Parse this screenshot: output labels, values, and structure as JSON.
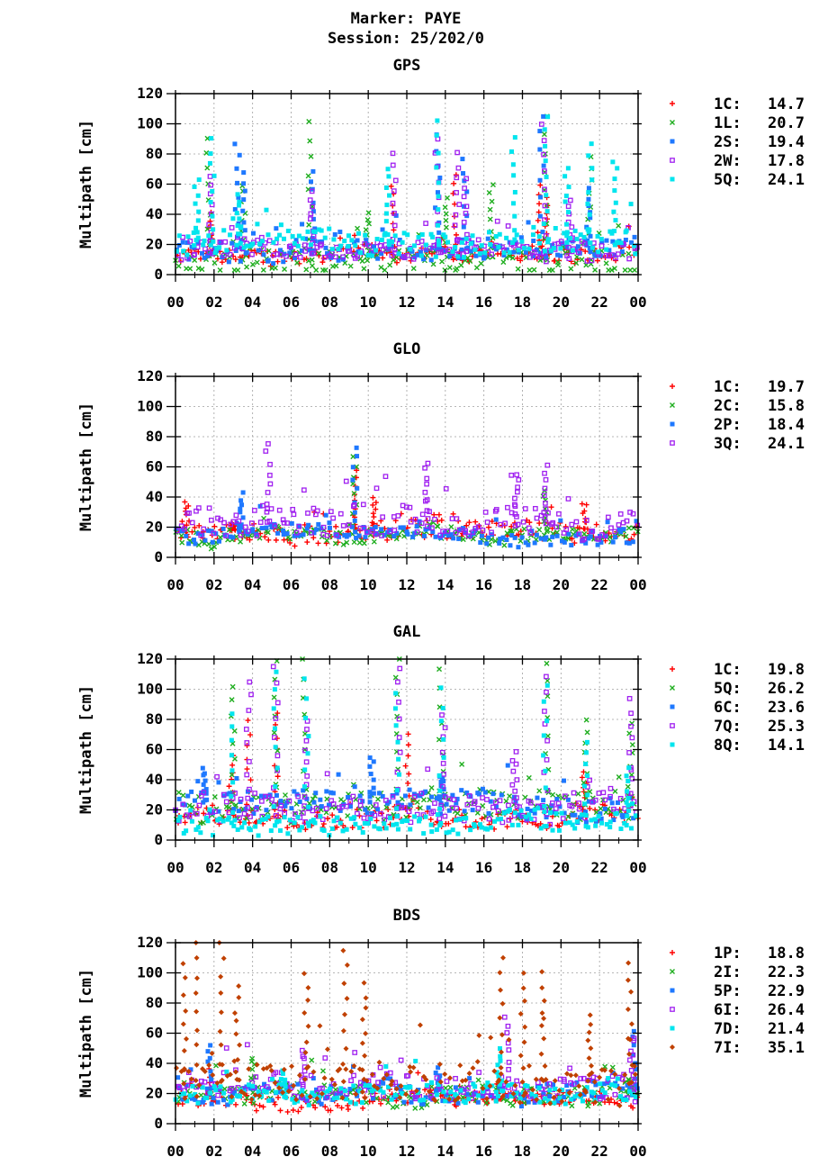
{
  "header": {
    "line1": "Marker: PAYE",
    "line2": "Session: 25/202/0"
  },
  "colors": {
    "red": "#ff0000",
    "green": "#1fae1f",
    "blue": "#1e78ff",
    "purple": "#a020f0",
    "cyan": "#00e5ee",
    "orange": "#c04000",
    "grid": "#a0a0a0"
  },
  "chart_data": [
    {
      "type": "scatter",
      "title": "GPS",
      "ylabel": "Multipath [cm]",
      "xlabel": "",
      "ylim": [
        0,
        120
      ],
      "xlim": [
        0,
        24
      ],
      "xticks": [
        "00",
        "02",
        "04",
        "06",
        "08",
        "10",
        "12",
        "14",
        "16",
        "18",
        "20",
        "22",
        "00"
      ],
      "yticks": [
        "0",
        "20",
        "40",
        "60",
        "80",
        "100",
        "120"
      ],
      "grid": true,
      "legend_position": "right",
      "series": [
        {
          "name": "1C:",
          "rms": "14.7",
          "marker": "plus",
          "color": "#ff0000",
          "base": 12,
          "spread": 6,
          "peaks": [
            [
              1.8,
              40
            ],
            [
              11.3,
              58
            ],
            [
              14.5,
              66
            ],
            [
              18.9,
              58
            ],
            [
              19.2,
              50
            ]
          ]
        },
        {
          "name": "1L:",
          "rms": "20.7",
          "marker": "cross",
          "color": "#1fae1f",
          "base": 11,
          "spread": 10,
          "peaks": [
            [
              1.7,
              90
            ],
            [
              3.5,
              60
            ],
            [
              7.0,
              100
            ],
            [
              10.0,
              40
            ],
            [
              14.0,
              50
            ],
            [
              16.4,
              60
            ],
            [
              19.2,
              104
            ],
            [
              21.5,
              78
            ]
          ]
        },
        {
          "name": "2S:",
          "rms": "19.4",
          "marker": "square",
          "color": "#1e78ff",
          "base": 17,
          "spread": 8,
          "peaks": [
            [
              3.2,
              88
            ],
            [
              3.5,
              68
            ],
            [
              7.1,
              68
            ],
            [
              13.6,
              92
            ],
            [
              15.0,
              76
            ],
            [
              19.0,
              106
            ],
            [
              21.4,
              56
            ]
          ]
        },
        {
          "name": "2W:",
          "rms": "17.8",
          "marker": "opensquare",
          "color": "#a020f0",
          "base": 15,
          "spread": 8,
          "peaks": [
            [
              1.8,
              66
            ],
            [
              7.1,
              56
            ],
            [
              11.4,
              80
            ],
            [
              13.6,
              90
            ],
            [
              14.6,
              80
            ],
            [
              15.0,
              64
            ],
            [
              19.1,
              100
            ],
            [
              20.5,
              48
            ]
          ]
        },
        {
          "name": "5Q:",
          "rms": "24.1",
          "marker": "square",
          "color": "#00e5ee",
          "base": 22,
          "spread": 10,
          "peaks": [
            [
              1.1,
              62
            ],
            [
              1.9,
              90
            ],
            [
              3.3,
              52
            ],
            [
              11.0,
              70
            ],
            [
              13.6,
              102
            ],
            [
              17.5,
              90
            ],
            [
              19.2,
              106
            ],
            [
              20.3,
              72
            ],
            [
              21.5,
              88
            ],
            [
              22.8,
              76
            ]
          ]
        }
      ]
    },
    {
      "type": "scatter",
      "title": "GLO",
      "ylabel": "Multipath [cm]",
      "xlabel": "",
      "ylim": [
        0,
        120
      ],
      "xlim": [
        0,
        24
      ],
      "xticks": [
        "00",
        "02",
        "04",
        "06",
        "08",
        "10",
        "12",
        "14",
        "16",
        "18",
        "20",
        "22",
        "00"
      ],
      "yticks": [
        "0",
        "20",
        "40",
        "60",
        "80",
        "100",
        "120"
      ],
      "grid": true,
      "legend_position": "right",
      "series": [
        {
          "name": "1C:",
          "rms": "19.7",
          "marker": "plus",
          "color": "#ff0000",
          "base": 18,
          "spread": 8,
          "peaks": [
            [
              0.6,
              36
            ],
            [
              3.0,
              22
            ],
            [
              9.3,
              58
            ],
            [
              10.3,
              40
            ],
            [
              21.2,
              36
            ]
          ]
        },
        {
          "name": "2C:",
          "rms": "15.8",
          "marker": "cross",
          "color": "#1fae1f",
          "base": 14,
          "spread": 6,
          "peaks": [
            [
              9.3,
              68
            ],
            [
              19.2,
              44
            ]
          ]
        },
        {
          "name": "2P:",
          "rms": "18.4",
          "marker": "square",
          "color": "#1e78ff",
          "base": 16,
          "spread": 6,
          "peaks": [
            [
              3.4,
              42
            ],
            [
              9.3,
              73
            ]
          ]
        },
        {
          "name": "3Q:",
          "rms": "24.1",
          "marker": "opensquare",
          "color": "#a020f0",
          "base": 22,
          "spread": 12,
          "peaks": [
            [
              4.8,
              76
            ],
            [
              13.0,
              63
            ],
            [
              17.7,
              54
            ],
            [
              19.2,
              60
            ]
          ]
        }
      ]
    },
    {
      "type": "scatter",
      "title": "GAL",
      "ylabel": "Multipath [cm]",
      "xlabel": "",
      "ylim": [
        0,
        120
      ],
      "xlim": [
        0,
        24
      ],
      "xticks": [
        "00",
        "02",
        "04",
        "06",
        "08",
        "10",
        "12",
        "14",
        "16",
        "18",
        "20",
        "22",
        "00"
      ],
      "yticks": [
        "0",
        "20",
        "40",
        "60",
        "80",
        "100",
        "120"
      ],
      "grid": true,
      "legend_position": "right",
      "series": [
        {
          "name": "1C:",
          "rms": "19.8",
          "marker": "plus",
          "color": "#ff0000",
          "base": 16,
          "spread": 8,
          "peaks": [
            [
              2.9,
              55
            ],
            [
              3.8,
              78
            ],
            [
              5.2,
              85
            ],
            [
              12.0,
              70
            ],
            [
              21.2,
              46
            ]
          ]
        },
        {
          "name": "5Q:",
          "rms": "26.2",
          "marker": "cross",
          "color": "#1fae1f",
          "base": 22,
          "spread": 12,
          "peaks": [
            [
              3.0,
              103
            ],
            [
              5.2,
              118
            ],
            [
              6.7,
              120
            ],
            [
              11.5,
              120
            ],
            [
              13.8,
              112
            ],
            [
              19.3,
              118
            ],
            [
              21.3,
              80
            ],
            [
              23.6,
              78
            ]
          ]
        },
        {
          "name": "6C:",
          "rms": "23.6",
          "marker": "square",
          "color": "#1e78ff",
          "base": 24,
          "spread": 10,
          "peaks": [
            [
              1.5,
              48
            ],
            [
              10.2,
              56
            ],
            [
              13.8,
              42
            ]
          ]
        },
        {
          "name": "7Q:",
          "rms": "25.3",
          "marker": "opensquare",
          "color": "#a020f0",
          "base": 22,
          "spread": 12,
          "peaks": [
            [
              3.8,
              106
            ],
            [
              5.2,
              116
            ],
            [
              6.8,
              80
            ],
            [
              11.6,
              115
            ],
            [
              13.9,
              82
            ],
            [
              17.6,
              58
            ],
            [
              19.2,
              108
            ],
            [
              23.6,
              94
            ]
          ]
        },
        {
          "name": "8Q:",
          "rms": "14.1",
          "marker": "square",
          "color": "#00e5ee",
          "base": 10,
          "spread": 8,
          "peaks": [
            [
              3.0,
              84
            ],
            [
              5.2,
              112
            ],
            [
              6.8,
              106
            ],
            [
              11.5,
              98
            ],
            [
              13.8,
              100
            ],
            [
              19.2,
              104
            ],
            [
              21.3,
              64
            ],
            [
              23.5,
              48
            ]
          ]
        }
      ]
    },
    {
      "type": "scatter",
      "title": "BDS",
      "ylabel": "Multipath [cm]",
      "xlabel": "",
      "ylim": [
        0,
        120
      ],
      "xlim": [
        0,
        24
      ],
      "xticks": [
        "00",
        "02",
        "04",
        "06",
        "08",
        "10",
        "12",
        "14",
        "16",
        "18",
        "20",
        "22",
        "00"
      ],
      "yticks": [
        "0",
        "20",
        "40",
        "60",
        "80",
        "100",
        "120"
      ],
      "grid": true,
      "legend_position": "right",
      "series": [
        {
          "name": "1P:",
          "rms": "18.8",
          "marker": "plus",
          "color": "#ff0000",
          "base": 16,
          "spread": 6,
          "peaks": [
            [
              1.8,
              35
            ],
            [
              16.8,
              26
            ]
          ]
        },
        {
          "name": "2I:",
          "rms": "22.3",
          "marker": "cross",
          "color": "#1fae1f",
          "base": 20,
          "spread": 8,
          "peaks": [
            [
              4.0,
              44
            ],
            [
              23.6,
              30
            ]
          ]
        },
        {
          "name": "5P:",
          "rms": "22.9",
          "marker": "square",
          "color": "#1e78ff",
          "base": 20,
          "spread": 8,
          "peaks": [
            [
              1.8,
              52
            ],
            [
              13.6,
              36
            ],
            [
              23.8,
              62
            ]
          ]
        },
        {
          "name": "6I:",
          "rms": "26.4",
          "marker": "opensquare",
          "color": "#a020f0",
          "base": 24,
          "spread": 10,
          "peaks": [
            [
              6.6,
              48
            ],
            [
              17.2,
              72
            ],
            [
              23.7,
              58
            ]
          ]
        },
        {
          "name": "7D:",
          "rms": "21.4",
          "marker": "square",
          "color": "#00e5ee",
          "base": 18,
          "spread": 8,
          "peaks": [
            [
              5.6,
              32
            ],
            [
              16.8,
              50
            ]
          ]
        },
        {
          "name": "7I:",
          "rms": "35.1",
          "marker": "diamond",
          "color": "#c04000",
          "base": 28,
          "spread": 16,
          "peaks": [
            [
              0.5,
              105
            ],
            [
              1.0,
              120
            ],
            [
              2.4,
              120
            ],
            [
              3.2,
              90
            ],
            [
              6.8,
              100
            ],
            [
              8.8,
              115
            ],
            [
              9.8,
              92
            ],
            [
              16.9,
              110
            ],
            [
              18.0,
              100
            ],
            [
              19.1,
              100
            ],
            [
              21.5,
              72
            ],
            [
              23.6,
              106
            ]
          ]
        }
      ]
    }
  ]
}
